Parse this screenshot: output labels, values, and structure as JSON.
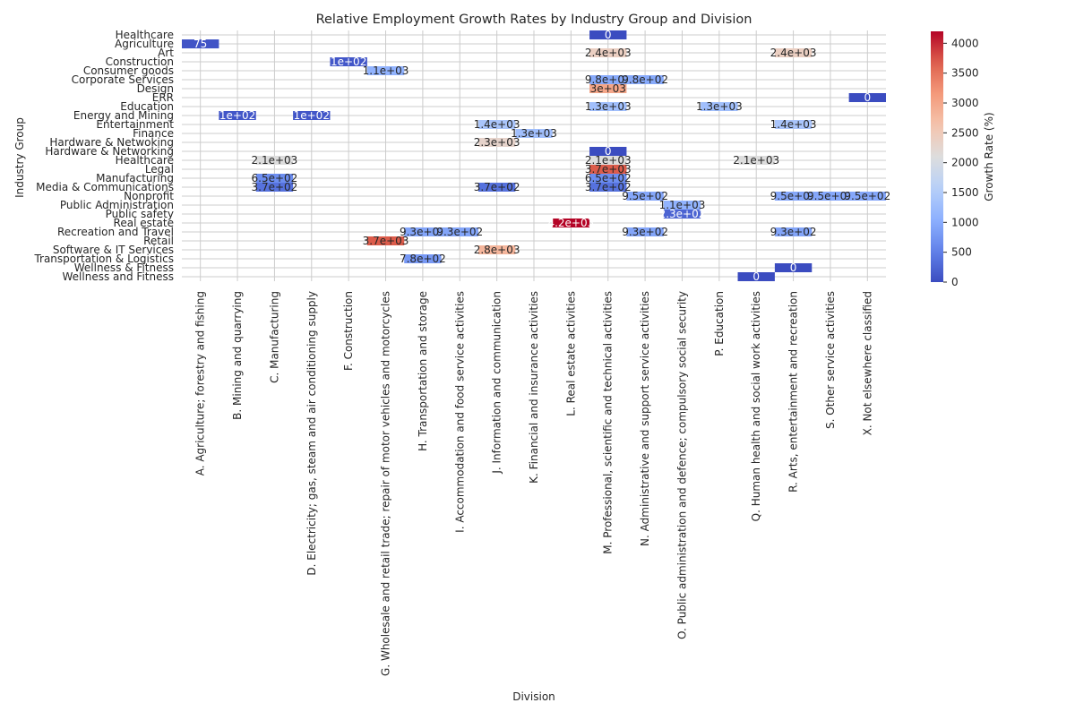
{
  "chart_data": {
    "type": "heatmap",
    "title": "Relative Employment Growth Rates by Industry Group and Division",
    "xlabel": "Division",
    "ylabel": "Industry Group",
    "colorbar_label": "Growth Rate (%)",
    "colorbar_ticks": [
      "0",
      "500",
      "1000",
      "1500",
      "2000",
      "2500",
      "3000",
      "3500",
      "4000"
    ],
    "colormap": "coolwarm",
    "vmin": 0,
    "vmax": 4200,
    "grid": true,
    "colorbar_position": "right",
    "x_categories": [
      "A. Agriculture; forestry and fishing",
      "B. Mining and quarrying",
      "C. Manufacturing",
      "D. Electricity; gas, steam and air conditioning supply",
      "F. Construction",
      "G. Wholesale and retail trade; repair of motor vehicles and motorcycles",
      "H. Transportation and storage",
      "I. Accommodation and food service activities",
      "J. Information and communication",
      "K. Financial and insurance activities",
      "L. Real estate activities",
      "M. Professional, scientific and technical activities",
      "N. Administrative and support service activities",
      "O. Public administration and defence; compulsory social security",
      "P. Education",
      "Q. Human health and social work activities",
      "R. Arts, entertainment and recreation",
      "S. Other service activities",
      "X. Not elsewhere classified"
    ],
    "y_categories": [
      "Healthcare",
      "Agriculture",
      "Art",
      "Construction",
      "Consumer goods",
      "Corporate Services",
      "Design",
      "ERR",
      "Education",
      "Energy and Mining",
      "Entertainment",
      "Finance",
      "Hardware & Netwoking",
      "Hardware & Networking",
      "Healthcare",
      "Legal",
      "Manufacturing",
      "Media & Communications",
      "Nonprofit",
      "Public Administration",
      "Public safety",
      "Real estate",
      "Recreation and Travel",
      "Retail",
      "Software & IT Services",
      "Transportation & Logistics",
      "Wellness & Fitness",
      "Wellness and Fitness"
    ],
    "cells": [
      {
        "row": 0,
        "col": 11,
        "value": 0,
        "label": "0"
      },
      {
        "row": 1,
        "col": 0,
        "value": 75,
        "label": "75"
      },
      {
        "row": 2,
        "col": 11,
        "value": 2400,
        "label": "2.4e+03"
      },
      {
        "row": 2,
        "col": 16,
        "value": 2400,
        "label": "2.4e+03"
      },
      {
        "row": 3,
        "col": 4,
        "value": 100,
        "label": "1e+02"
      },
      {
        "row": 4,
        "col": 5,
        "value": 1100,
        "label": "1.1e+03"
      },
      {
        "row": 5,
        "col": 11,
        "value": 980,
        "label": "9.8e+02"
      },
      {
        "row": 5,
        "col": 12,
        "value": 980,
        "label": "9.8e+02"
      },
      {
        "row": 6,
        "col": 11,
        "value": 3000,
        "label": "3e+03"
      },
      {
        "row": 7,
        "col": 18,
        "value": 0,
        "label": "0"
      },
      {
        "row": 8,
        "col": 11,
        "value": 1300,
        "label": "1.3e+03"
      },
      {
        "row": 8,
        "col": 14,
        "value": 1300,
        "label": "1.3e+03"
      },
      {
        "row": 9,
        "col": 1,
        "value": 100,
        "label": "1e+02"
      },
      {
        "row": 9,
        "col": 3,
        "value": 100,
        "label": "1e+02"
      },
      {
        "row": 10,
        "col": 8,
        "value": 1400,
        "label": "1.4e+03"
      },
      {
        "row": 10,
        "col": 16,
        "value": 1400,
        "label": "1.4e+03"
      },
      {
        "row": 11,
        "col": 9,
        "value": 1300,
        "label": "1.3e+03"
      },
      {
        "row": 12,
        "col": 8,
        "value": 2300,
        "label": "2.3e+03"
      },
      {
        "row": 13,
        "col": 11,
        "value": 0,
        "label": "0"
      },
      {
        "row": 14,
        "col": 2,
        "value": 2100,
        "label": "2.1e+03"
      },
      {
        "row": 14,
        "col": 11,
        "value": 2100,
        "label": "2.1e+03"
      },
      {
        "row": 14,
        "col": 15,
        "value": 2100,
        "label": "2.1e+03"
      },
      {
        "row": 15,
        "col": 11,
        "value": 3700,
        "label": "3.7e+03"
      },
      {
        "row": 16,
        "col": 2,
        "value": 650,
        "label": "6.5e+02"
      },
      {
        "row": 16,
        "col": 11,
        "value": 650,
        "label": "6.5e+02"
      },
      {
        "row": 17,
        "col": 2,
        "value": 370,
        "label": "3.7e+02"
      },
      {
        "row": 17,
        "col": 8,
        "value": 370,
        "label": "3.7e+02"
      },
      {
        "row": 17,
        "col": 11,
        "value": 370,
        "label": "3.7e+02"
      },
      {
        "row": 18,
        "col": 12,
        "value": 950,
        "label": "9.5e+02"
      },
      {
        "row": 18,
        "col": 16,
        "value": 950,
        "label": "9.5e+02"
      },
      {
        "row": 18,
        "col": 17,
        "value": 950,
        "label": "9.5e+02"
      },
      {
        "row": 18,
        "col": 18,
        "value": 950,
        "label": "9.5e+02"
      },
      {
        "row": 19,
        "col": 13,
        "value": 1100,
        "label": "1.1e+03"
      },
      {
        "row": 20,
        "col": 13,
        "value": 230,
        "label": "2.3e+02"
      },
      {
        "row": 21,
        "col": 10,
        "value": 4200,
        "label": "4.2e+03"
      },
      {
        "row": 22,
        "col": 6,
        "value": 930,
        "label": "9.3e+02"
      },
      {
        "row": 22,
        "col": 7,
        "value": 930,
        "label": "9.3e+02"
      },
      {
        "row": 22,
        "col": 12,
        "value": 930,
        "label": "9.3e+02"
      },
      {
        "row": 22,
        "col": 16,
        "value": 930,
        "label": "9.3e+02"
      },
      {
        "row": 23,
        "col": 5,
        "value": 3700,
        "label": "3.7e+03"
      },
      {
        "row": 24,
        "col": 8,
        "value": 2800,
        "label": "2.8e+03"
      },
      {
        "row": 25,
        "col": 6,
        "value": 780,
        "label": "7.8e+02"
      },
      {
        "row": 26,
        "col": 16,
        "value": 0,
        "label": "0"
      },
      {
        "row": 27,
        "col": 15,
        "value": 0,
        "label": "0"
      }
    ]
  }
}
